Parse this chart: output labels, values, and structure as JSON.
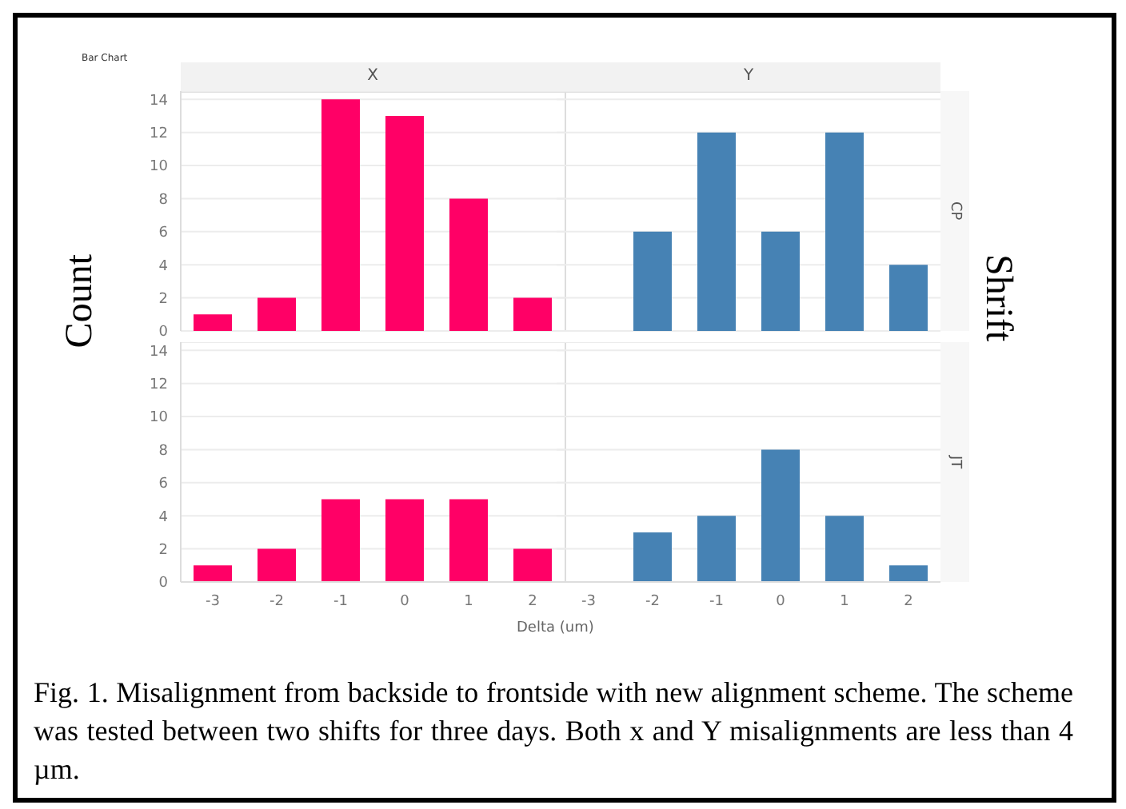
{
  "chart_data": [
    {
      "type": "bar",
      "title": "X",
      "ylabel": "Count",
      "annotations": [
        "Bar Chart"
      ],
      "categories": [
        "-3",
        "-2",
        "-1",
        "0",
        "1",
        "2"
      ],
      "values": [
        1,
        2,
        14,
        13,
        8,
        2
      ],
      "color": "#ff0066",
      "ylim": [
        0,
        14.5
      ],
      "yticks": [
        0,
        2,
        4,
        6,
        8,
        10,
        12,
        14
      ],
      "grid": "y",
      "tick_labels": "y"
    },
    {
      "type": "bar",
      "title": "Y",
      "y2label": "CP",
      "annotations": [
        "Shrift"
      ],
      "categories": [
        "-3",
        "-2",
        "-1",
        "0",
        "1",
        "2"
      ],
      "values": [
        0,
        6,
        12,
        6,
        12,
        4
      ],
      "color": "#4682b4",
      "ylim": [
        0,
        14.5
      ],
      "yticks": [
        0,
        2,
        4,
        6,
        8,
        10,
        12,
        14
      ],
      "grid": "y",
      "tick_labels": false
    },
    {
      "type": "bar",
      "xlabel": "Delta (um)",
      "categories": [
        "-3",
        "-2",
        "-1",
        "0",
        "1",
        "2"
      ],
      "values": [
        1,
        2,
        5,
        5,
        5,
        2
      ],
      "color": "#ff0066",
      "ylim": [
        0,
        14.5
      ],
      "yticks": [
        0,
        2,
        4,
        6,
        8,
        10,
        12,
        14
      ],
      "grid": "y"
    },
    {
      "type": "bar",
      "y2label": "JT",
      "annotations": [
        "Fig. 1. Misalignment from backside to frontside with new alignment scheme. The scheme was tested between two shifts for three days. Both x and Y misalignments are less than 4 µm."
      ],
      "categories": [
        "-3",
        "-2",
        "-1",
        "0",
        "1",
        "2"
      ],
      "values": [
        0,
        3,
        4,
        8,
        4,
        1
      ],
      "color": "#4682b4",
      "ylim": [
        0,
        14.5
      ],
      "yticks": [
        0,
        2,
        4,
        6,
        8,
        10,
        12,
        14
      ],
      "grid": "y",
      "tick_labels": "x"
    }
  ]
}
